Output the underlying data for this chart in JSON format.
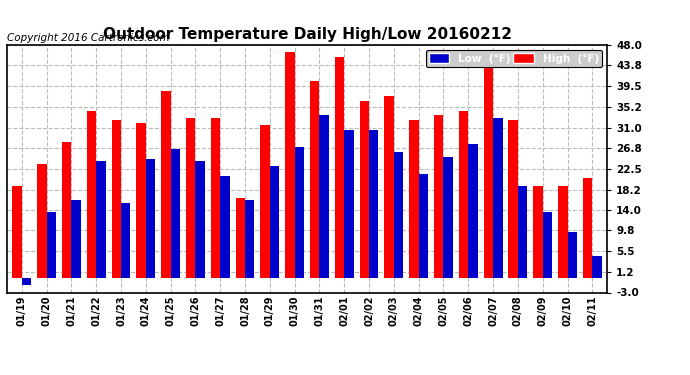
{
  "title": "Outdoor Temperature Daily High/Low 20160212",
  "copyright": "Copyright 2016 Cartronics.com",
  "dates": [
    "01/19",
    "01/20",
    "01/21",
    "01/22",
    "01/23",
    "01/24",
    "01/25",
    "01/26",
    "01/27",
    "01/28",
    "01/29",
    "01/30",
    "01/31",
    "02/01",
    "02/02",
    "02/03",
    "02/04",
    "02/05",
    "02/06",
    "02/07",
    "02/08",
    "02/09",
    "02/10",
    "02/11"
  ],
  "high": [
    19.0,
    23.5,
    28.0,
    34.5,
    32.5,
    32.0,
    38.5,
    33.0,
    33.0,
    16.5,
    31.5,
    46.5,
    40.5,
    45.5,
    36.5,
    37.5,
    32.5,
    33.5,
    34.5,
    46.0,
    32.5,
    19.0,
    19.0,
    20.5
  ],
  "low": [
    -1.5,
    13.5,
    16.0,
    24.0,
    15.5,
    24.5,
    26.5,
    24.0,
    21.0,
    16.0,
    23.0,
    27.0,
    33.5,
    30.5,
    30.5,
    26.0,
    21.5,
    25.0,
    27.5,
    33.0,
    19.0,
    13.5,
    9.5,
    4.5
  ],
  "ylim": [
    -3.0,
    48.0
  ],
  "yticks": [
    -3.0,
    1.2,
    5.5,
    9.8,
    14.0,
    18.2,
    22.5,
    26.8,
    31.0,
    35.2,
    39.5,
    43.8,
    48.0
  ],
  "ytick_labels": [
    "-3.0",
    "1.2",
    "5.5",
    "9.8",
    "14.0",
    "18.2",
    "22.5",
    "26.8",
    "31.0",
    "35.2",
    "39.5",
    "43.8",
    "48.0"
  ],
  "bar_width": 0.38,
  "high_color": "#FF0000",
  "low_color": "#0000CC",
  "bg_color": "#FFFFFF",
  "plot_bg_color": "#FFFFFF",
  "grid_color": "#BBBBBB",
  "border_color": "#000000",
  "title_fontsize": 11,
  "copyright_fontsize": 7.5,
  "legend_low_label": "Low  (°F)",
  "legend_high_label": "High  (°F)"
}
